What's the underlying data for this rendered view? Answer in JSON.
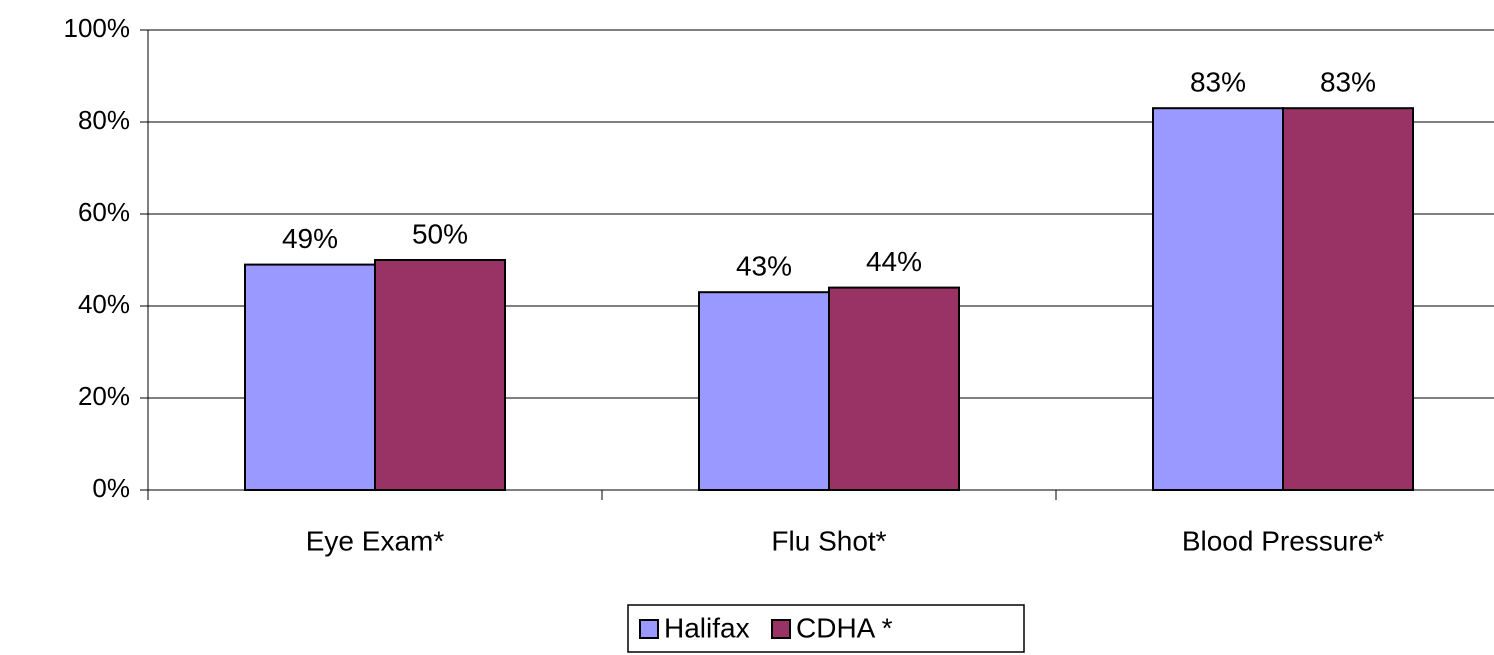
{
  "chart_data": {
    "type": "bar",
    "categories": [
      "Eye Exam*",
      "Flu Shot*",
      "Blood Pressure*"
    ],
    "series": [
      {
        "name": "Halifax",
        "color": "#9999ff",
        "values": [
          49,
          43,
          83
        ],
        "value_labels": [
          "49%",
          "43%",
          "83%"
        ]
      },
      {
        "name": "CDHA *",
        "color": "#993366",
        "values": [
          50,
          44,
          83
        ],
        "value_labels": [
          "50%",
          "44%",
          "83%"
        ]
      }
    ],
    "ylim": [
      0,
      100
    ],
    "yticks": [
      {
        "value": 0,
        "label": "0%"
      },
      {
        "value": 20,
        "label": "20%"
      },
      {
        "value": 40,
        "label": "40%"
      },
      {
        "value": 60,
        "label": "60%"
      },
      {
        "value": 80,
        "label": "80%"
      },
      {
        "value": 100,
        "label": "100%"
      }
    ],
    "grid": true,
    "legend": "bottom"
  }
}
